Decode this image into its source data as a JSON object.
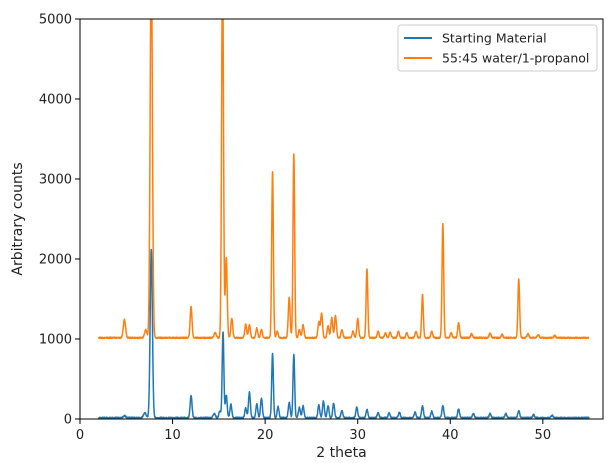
{
  "chart_data": {
    "type": "line",
    "title": "",
    "xlabel": "2 theta",
    "ylabel": "Arbitrary counts",
    "xlim": [
      0,
      56.5
    ],
    "ylim": [
      0,
      5000
    ],
    "xticks": [
      0,
      10,
      20,
      30,
      40,
      50
    ],
    "yticks": [
      0,
      1000,
      2000,
      3000,
      4000,
      5000
    ],
    "grid": false,
    "legend_position": "top-right",
    "x_range": [
      2,
      55
    ],
    "series": [
      {
        "name": "Starting Material",
        "color": "#1f77b4",
        "baseline": 15,
        "peaks": [
          [
            4.8,
            25,
            0.15
          ],
          [
            7.0,
            60,
            0.15
          ],
          [
            7.7,
            2100,
            0.12
          ],
          [
            12.0,
            280,
            0.1
          ],
          [
            14.5,
            55,
            0.12
          ],
          [
            15.1,
            80,
            0.1
          ],
          [
            15.45,
            1080,
            0.09
          ],
          [
            15.8,
            280,
            0.1
          ],
          [
            16.3,
            170,
            0.1
          ],
          [
            17.9,
            120,
            0.1
          ],
          [
            18.3,
            320,
            0.1
          ],
          [
            19.1,
            170,
            0.1
          ],
          [
            19.6,
            240,
            0.1
          ],
          [
            20.8,
            800,
            0.09
          ],
          [
            21.4,
            140,
            0.1
          ],
          [
            22.6,
            190,
            0.1
          ],
          [
            23.1,
            790,
            0.09
          ],
          [
            23.7,
            130,
            0.1
          ],
          [
            24.1,
            150,
            0.1
          ],
          [
            25.8,
            160,
            0.1
          ],
          [
            26.3,
            210,
            0.1
          ],
          [
            26.8,
            150,
            0.1
          ],
          [
            27.4,
            180,
            0.1
          ],
          [
            28.3,
            90,
            0.1
          ],
          [
            29.9,
            130,
            0.1
          ],
          [
            31.0,
            100,
            0.1
          ],
          [
            32.2,
            60,
            0.1
          ],
          [
            33.4,
            60,
            0.1
          ],
          [
            34.5,
            70,
            0.1
          ],
          [
            36.2,
            70,
            0.1
          ],
          [
            37.0,
            150,
            0.1
          ],
          [
            38.0,
            80,
            0.1
          ],
          [
            39.2,
            150,
            0.1
          ],
          [
            40.9,
            110,
            0.1
          ],
          [
            42.5,
            50,
            0.1
          ],
          [
            44.3,
            50,
            0.1
          ],
          [
            46.0,
            50,
            0.1
          ],
          [
            47.4,
            90,
            0.1
          ],
          [
            49.0,
            40,
            0.1
          ],
          [
            51.0,
            30,
            0.1
          ]
        ]
      },
      {
        "name": "55:45 water/1-propanol",
        "color": "#ff7f0e",
        "baseline": 1015,
        "peaks": [
          [
            4.8,
            230,
            0.12
          ],
          [
            7.1,
            100,
            0.12
          ],
          [
            7.7,
            4800,
            0.12
          ],
          [
            12.0,
            390,
            0.1
          ],
          [
            14.6,
            60,
            0.12
          ],
          [
            15.4,
            4700,
            0.1
          ],
          [
            15.8,
            1000,
            0.1
          ],
          [
            16.4,
            240,
            0.1
          ],
          [
            17.9,
            170,
            0.1
          ],
          [
            18.3,
            160,
            0.1
          ],
          [
            19.1,
            120,
            0.1
          ],
          [
            19.6,
            100,
            0.1
          ],
          [
            20.8,
            2080,
            0.09
          ],
          [
            21.3,
            80,
            0.1
          ],
          [
            22.6,
            500,
            0.1
          ],
          [
            23.1,
            2290,
            0.09
          ],
          [
            23.7,
            100,
            0.1
          ],
          [
            24.1,
            160,
            0.1
          ],
          [
            25.8,
            200,
            0.1
          ],
          [
            26.1,
            310,
            0.1
          ],
          [
            26.8,
            150,
            0.1
          ],
          [
            27.2,
            250,
            0.1
          ],
          [
            27.6,
            280,
            0.1
          ],
          [
            28.3,
            100,
            0.1
          ],
          [
            29.5,
            80,
            0.1
          ],
          [
            30.0,
            240,
            0.1
          ],
          [
            31.0,
            860,
            0.09
          ],
          [
            32.2,
            80,
            0.1
          ],
          [
            33.0,
            60,
            0.1
          ],
          [
            33.5,
            70,
            0.1
          ],
          [
            34.4,
            80,
            0.1
          ],
          [
            35.3,
            60,
            0.1
          ],
          [
            36.3,
            80,
            0.1
          ],
          [
            37.0,
            540,
            0.09
          ],
          [
            38.0,
            80,
            0.1
          ],
          [
            39.2,
            1420,
            0.09
          ],
          [
            40.1,
            60,
            0.1
          ],
          [
            40.9,
            190,
            0.1
          ],
          [
            42.3,
            50,
            0.1
          ],
          [
            44.3,
            60,
            0.1
          ],
          [
            45.6,
            40,
            0.1
          ],
          [
            47.4,
            730,
            0.09
          ],
          [
            48.4,
            50,
            0.1
          ],
          [
            49.5,
            40,
            0.1
          ],
          [
            51.3,
            30,
            0.1
          ]
        ]
      }
    ]
  }
}
